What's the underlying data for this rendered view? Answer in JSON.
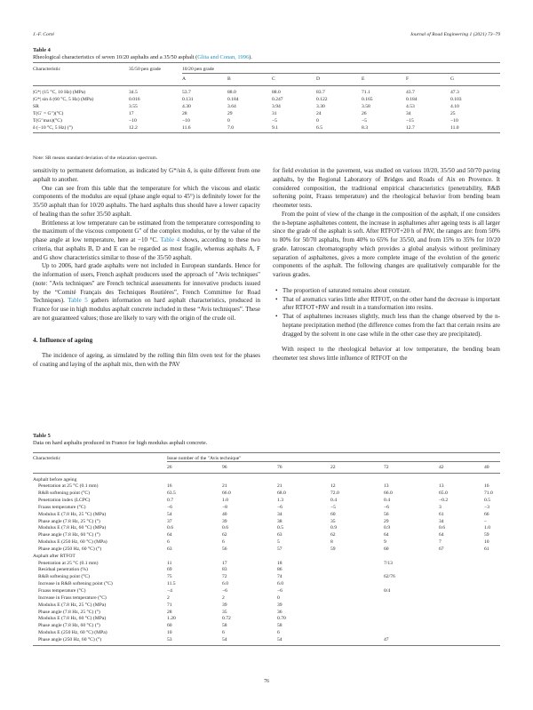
{
  "header": {
    "author": "J.-F. Corté",
    "journal": "Journal of Road Engineering 1 (2021) 73–79"
  },
  "table4": {
    "label": "Table 4",
    "caption": "Rheological characteristics of seven 10/20 asphalts and a 35/50 asphalt (",
    "caption_link": "Glita and Conan, 1996",
    "caption_end": ").",
    "headers": [
      "Characteristic",
      "35/50 pen grade",
      "10/20 pen grade"
    ],
    "subheaders": [
      "A",
      "B",
      "C",
      "D",
      "E",
      "F",
      "G"
    ],
    "rows": [
      [
        "|G*| (15 °C, 10 Hz) (MPa)",
        "34.5",
        "53.7",
        "88.0",
        "88.0",
        "83.7",
        "71.1",
        "43.7",
        "47.3"
      ],
      [
        "|G*| sin δ (60 °C, 5 Hz) (MPa)",
        "0.016",
        "0.131",
        "0.184",
        "0.247",
        "0.122",
        "0.165",
        "0.184",
        "0.103"
      ],
      [
        "SR",
        "3.55",
        "4.30",
        "3.64",
        "3.94",
        "3.30",
        "3.58",
        "4.53",
        "4.10"
      ],
      [
        "T(G′ = G″)(°C)",
        "17",
        "28",
        "29",
        "31",
        "24",
        "26",
        "34",
        "25"
      ],
      [
        "T(G″max)(°C)",
        "−10",
        "−10",
        "0",
        "−5",
        "0",
        "−5",
        "−15",
        "−10"
      ],
      [
        "δ (−10 °C, 5 Hz) (°)",
        "12.2",
        "11.6",
        "7.0",
        "9.1",
        "6.5",
        "8.3",
        "12.7",
        "11.0"
      ]
    ],
    "note": "Note: SR means standard deviation of the relaxation spectrum."
  },
  "body": {
    "left": [
      {
        "t": "sensitivity to permanent deformation, as indicated by G*/sin δ, is quite different from one asphalt to another.",
        "ni": true
      },
      {
        "t": "One can see from this table that the temperature for which the viscous and elastic components of the modulus are equal (phase angle equal to 45°) is definitely lower for the 35/50 asphalt than for 10/20 asphalts. The hard asphalts thus should have a lower capacity of healing than the softer 35/50 asphalt."
      },
      {
        "t": "Brittleness at low temperature can be estimated from the temperature corresponding to the maximum of the viscous component G″ of the complex modulus, or by the value of the phase angle at low temperature, here at −10 °C. ",
        "link": "Table 4",
        "t2": " shows, according to these two criteria, that asphalts B, D and E can be regarded as most fragile, whereas asphalts A, F and G show characteristics similar to those of the 35/50 asphalt."
      },
      {
        "t": "Up to 2006, hard grade asphalts were not included in European standards. Hence for the information of users, French asphalt producers used the approach of \"Avis techniques\" (note: \"Avis techniques\" are French technical assessments for innovative products issued by the “Comité Français des Techniques Routières”, French Committee for Road Techniques). ",
        "link": "Table 5",
        "t2": " gathers information on hard asphalt characteristics, produced in France for use in high modulus asphalt concrete included in these “Avis techniques”. These are not guaranteed values; those are likely to vary with the origin of the crude oil."
      }
    ],
    "section_heading": "4.  Influence of ageing",
    "left2": "The incidence of ageing, as simulated by the rolling thin film oven test for the phases of coating and laying of the asphalt mix, then with the PAV",
    "right": [
      {
        "t": "for field evolution in the pavement, was studied on various 10/20, 35/50 and 50/70 paving asphalts, by the Regional Laboratory of Bridges and Roads of Aix en Provence. It considered composition, the traditional empirical characteristics (penetrability, R&B softening point, Fraass temperature) and the rheological behavior from bending beam rheometer tests.",
        "ni": true
      },
      {
        "t": "From the point of view of the change in the composition of the asphalt, if one considers the n-heptane asphaltenes content, the increase in asphaltenes after ageing tests is all larger since the grade of the asphalt is soft. After RTFOT+20 h of PAV, the ranges are: from 50% to 80% for 50/70 asphalts, from 40% to 65% for 35/50, and from 15% to 35% for 10/20 grade. Iatroscan chromatography which provides a global analysis without preliminary separation of asphaltenes, gives a more complete image of the evolution of the generic components of the asphalt. The following changes are qualitatively comparable for the various grades."
      }
    ],
    "bullets": [
      "The proportion of saturated remains about constant.",
      "That of aromatics varies little after RTFOT, on the other hand the decrease is important after RTFOT+PAV and result in a transformation into resins.",
      "That of asphaltenes increases slightly, much less than the change observed by the n-heptane precipitation method (the difference comes from the fact that certain resins are dragged by the solvent in one case while in the other case they are precipitated)."
    ],
    "right2": "With respect to the rheological behavior at low temperature, the bending beam rheometer test shows little influence of RTFOT on the"
  },
  "table5": {
    "label": "Table 5",
    "caption": "Data on hard asphalts produced in France for high modulus asphalt concrete.",
    "headers": [
      "Characteristic",
      "Issue number of the \"Avis technique\""
    ],
    "subheaders": [
      "26",
      "96",
      "76",
      "22",
      "72",
      "42",
      "40"
    ],
    "sections": [
      {
        "title": "Asphalt before ageing",
        "rows": [
          [
            "Penetration at 25 °C (0.1 mm)",
            "16",
            "21",
            "21",
            "12",
            "13",
            "13",
            "16"
          ],
          [
            "R&B softening point (°C)",
            "63.5",
            "66.0",
            "68.0",
            "72.0",
            "66.0",
            "65.0",
            "71.0"
          ],
          [
            "Penetration index (LCPC)",
            "0.7",
            "1.0",
            "1.3",
            "0.4",
            "0.4",
            "−0.2",
            "0.5"
          ],
          [
            "Fraass temperature (°C)",
            "−6",
            "−8",
            "−6",
            "−5",
            "−6",
            "3",
            "−3"
          ],
          [
            "Modulus E (7.8 Hz, 25 °C) (MPa)",
            "54",
            "40",
            "34",
            "60",
            "56",
            "61",
            "66"
          ],
          [
            "Phase angle (7.8 Hz, 25 °C) (°)",
            "37",
            "39",
            "38",
            "35",
            "29",
            "34",
            "–"
          ],
          [
            "Modulus E (7.8 Hz, 60 °C) (MPa)",
            "0.6",
            "0.6",
            "0.5",
            "0.9",
            "0.9",
            "0.6",
            "1.0"
          ],
          [
            "Phase angle (7.8 Hz, 60 °C) (°)",
            "64",
            "62",
            "63",
            "62",
            "64",
            "64",
            "59"
          ],
          [
            "Modulus E (250 Hz, 60 °C) (MPa)",
            "6",
            "6",
            "5",
            "8",
            "9",
            "7",
            "10"
          ],
          [
            "Phase angle (250 Hz, 60 °C) (°)",
            "63",
            "56",
            "57",
            "59",
            "60",
            "67",
            "61"
          ]
        ]
      },
      {
        "title": "Asphalt after RTFOT",
        "rows": [
          [
            "Penetration at 25 °C (0.1 mm)",
            "11",
            "17",
            "18",
            "",
            "7/13",
            "",
            ""
          ],
          [
            "Residual penetration (%)",
            "69",
            "83",
            "86",
            "",
            "",
            "",
            ""
          ],
          [
            "R&B softening point (°C)",
            "75",
            "72",
            "74",
            "",
            "62/76",
            "",
            ""
          ],
          [
            "Increase in R&B softening point (°C)",
            "11.5",
            "6.0",
            "6.0",
            "",
            "",
            "",
            ""
          ],
          [
            "Fraass temperature (°C)",
            "−4",
            "−6",
            "−6",
            "",
            "0/4",
            "",
            ""
          ],
          [
            "Increase in Frass temperature (°C)",
            "2",
            "2",
            "0",
            "",
            "",
            "",
            ""
          ],
          [
            "Modulus E (7.8 Hz, 25 °C) (MPa)",
            "71",
            "39",
            "39",
            "",
            "",
            "",
            ""
          ],
          [
            "Phase angle (7.8 Hz, 25 °C) (°)",
            "28",
            "35",
            "36",
            "",
            "",
            "",
            ""
          ],
          [
            "Modulus E (7.8 Hz, 60 °C) (MPa)",
            "1.20",
            "0.72",
            "0.70",
            "",
            "",
            "",
            ""
          ],
          [
            "Phase angle (7.8 Hz, 60 °C) (°)",
            "60",
            "58",
            "58",
            "",
            "",
            "",
            ""
          ],
          [
            "Modulus E (250 Hz, 60 °C) (MPa)",
            "10",
            "6",
            "6",
            "",
            "",
            "",
            ""
          ],
          [
            "Phase angle (250 Hz, 60 °C) (°)",
            "53",
            "54",
            "54",
            "",
            "47",
            "",
            ""
          ]
        ]
      }
    ]
  },
  "page_number": "76"
}
